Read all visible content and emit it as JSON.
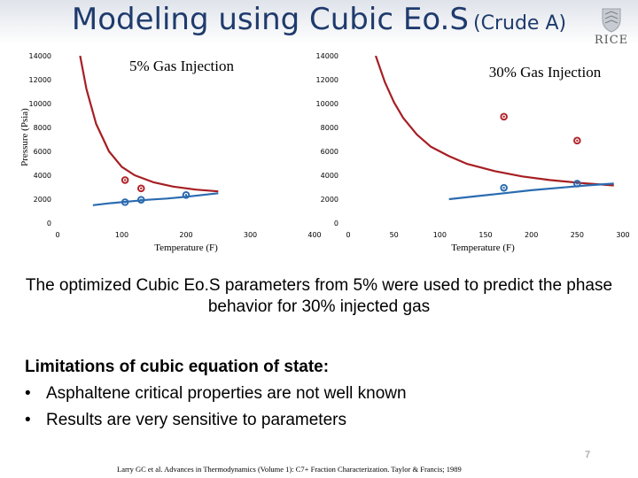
{
  "slide": {
    "title_main": "Modeling using Cubic Eo.S",
    "title_sub": "(Crude A)",
    "logo_text": "RICE",
    "caption": "The optimized Cubic Eo.S parameters from 5% were used to predict the phase behavior for 30% injected gas",
    "limitations_heading": "Limitations of cubic equation of state:",
    "limitations": [
      "Asphaltene critical properties are not well known",
      "Results are very sensitive to parameters"
    ],
    "page_number": "7",
    "reference": "Larry GC et al. Advances in Thermodynamics (Volume 1): C7+ Fraction Characterization. Taylor & Francis; 1989"
  },
  "colors": {
    "title": "#1f3b6d",
    "upper_curve": "#a61e22",
    "lower_curve": "#2a6bb0",
    "upper_marker": "#b3262c",
    "lower_marker": "#2a6bb0"
  },
  "chart_data": [
    {
      "type": "line",
      "title": "5% Gas Injection",
      "xlabel": "Temperature (F)",
      "ylabel": "Pressure (Psia)",
      "xlim": [
        0,
        400
      ],
      "ylim": [
        0,
        14000
      ],
      "xticks": [
        "0",
        "100",
        "200",
        "300",
        "400"
      ],
      "yticks": [
        "0",
        "2000",
        "4000",
        "6000",
        "8000",
        "10000",
        "12000",
        "14000"
      ],
      "series": [
        {
          "role": "model-upper",
          "x": [
            35,
            45,
            60,
            80,
            100,
            120,
            150,
            180,
            215,
            250
          ],
          "y": [
            14000,
            11200,
            8300,
            6000,
            4700,
            4000,
            3400,
            3050,
            2800,
            2650
          ]
        },
        {
          "role": "model-lower",
          "x": [
            55,
            80,
            110,
            140,
            170,
            200,
            225,
            250
          ],
          "y": [
            1500,
            1650,
            1800,
            1950,
            2050,
            2200,
            2350,
            2500
          ]
        },
        {
          "role": "data-upper",
          "x": [
            105,
            130
          ],
          "y": [
            3600,
            2900
          ],
          "mode": "markers"
        },
        {
          "role": "data-lower",
          "x": [
            105,
            130,
            200
          ],
          "y": [
            1750,
            1950,
            2350
          ],
          "mode": "markers"
        }
      ]
    },
    {
      "type": "line",
      "title": "30% Gas Injection",
      "xlabel": "Temperature (F)",
      "ylabel": "",
      "xlim": [
        0,
        300
      ],
      "ylim": [
        0,
        14000
      ],
      "xticks": [
        "0",
        "50",
        "100",
        "150",
        "200",
        "250",
        "300"
      ],
      "yticks": [
        "0",
        "2000",
        "4000",
        "6000",
        "8000",
        "10000",
        "12000",
        "14000"
      ],
      "series": [
        {
          "role": "model-upper",
          "x": [
            30,
            40,
            50,
            60,
            75,
            90,
            110,
            130,
            160,
            190,
            220,
            255,
            290
          ],
          "y": [
            14000,
            11800,
            10100,
            8800,
            7400,
            6400,
            5600,
            4950,
            4350,
            3900,
            3600,
            3350,
            3150
          ]
        },
        {
          "role": "model-lower",
          "x": [
            110,
            140,
            170,
            200,
            230,
            260,
            290
          ],
          "y": [
            2000,
            2250,
            2500,
            2750,
            2950,
            3150,
            3300
          ]
        },
        {
          "role": "data-upper",
          "x": [
            170,
            250
          ],
          "y": [
            8900,
            6900
          ],
          "mode": "markers"
        },
        {
          "role": "data-lower",
          "x": [
            170,
            250
          ],
          "y": [
            2950,
            3300
          ],
          "mode": "markers"
        }
      ]
    }
  ]
}
